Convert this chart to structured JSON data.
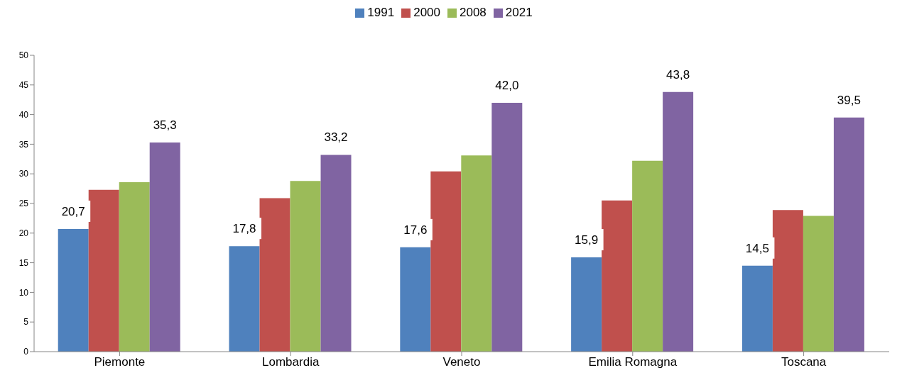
{
  "chart_data": {
    "type": "bar",
    "categories": [
      "Piemonte",
      "Lombardia",
      "Veneto",
      "Emilia Romagna",
      "Toscana"
    ],
    "series": [
      {
        "name": "1991",
        "color": "#4f81bd",
        "values": [
          20.7,
          17.8,
          17.6,
          15.9,
          14.5
        ],
        "value_labels": [
          "20,7",
          "17,8",
          "17,6",
          "15,9",
          "14,5"
        ]
      },
      {
        "name": "2000",
        "color": "#c0504d",
        "values": [
          27.3,
          25.9,
          30.4,
          25.5,
          23.9
        ]
      },
      {
        "name": "2008",
        "color": "#9bbb59",
        "values": [
          28.6,
          28.8,
          33.1,
          32.2,
          22.9
        ]
      },
      {
        "name": "2021",
        "color": "#8064a2",
        "values": [
          35.3,
          33.2,
          42.0,
          43.8,
          39.5
        ],
        "value_labels": [
          "35,3",
          "33,2",
          "42,0",
          "43,8",
          "39,5"
        ]
      }
    ],
    "ylim": [
      0,
      50
    ],
    "yticks": [
      0,
      5,
      10,
      15,
      20,
      25,
      30,
      35,
      40,
      45,
      50
    ],
    "grid": false,
    "legend": "top"
  }
}
